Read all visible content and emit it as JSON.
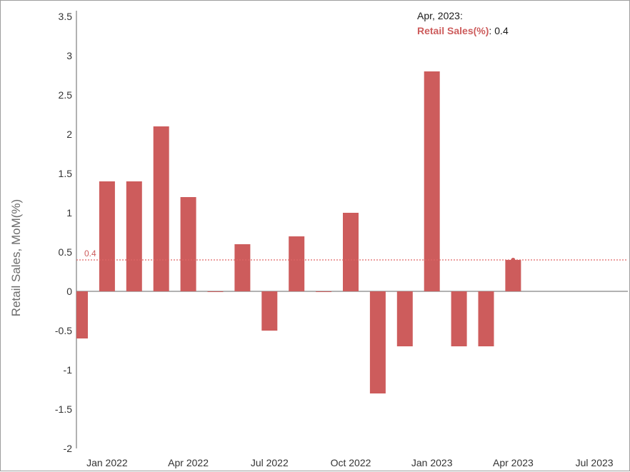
{
  "chart_data": {
    "type": "bar",
    "ylabel": "Retail Sales, MoM(%)",
    "xlabel": "",
    "ylim": [
      -2,
      3.5
    ],
    "yticks": [
      3.5,
      3,
      2.5,
      2,
      1.5,
      1,
      0.5,
      0,
      -0.5,
      -1,
      -1.5,
      -2
    ],
    "ytick_labels": [
      "3.5",
      "3",
      "2.5",
      "2",
      "1.5",
      "1",
      "0.5",
      "0",
      "-0.5",
      "-1",
      "-1.5",
      "-2"
    ],
    "xtick_labels": [
      "Jan 2022",
      "Apr 2022",
      "Jul 2022",
      "Oct 2022",
      "Jan 2023",
      "Apr 2023",
      "Jul 2023"
    ],
    "xtick_dates": [
      "2022-01",
      "2022-04",
      "2022-07",
      "2022-10",
      "2023-01",
      "2023-04",
      "2023-07"
    ],
    "x": [
      "2021-12",
      "2022-01",
      "2022-02",
      "2022-03",
      "2022-04",
      "2022-05",
      "2022-06",
      "2022-07",
      "2022-08",
      "2022-09",
      "2022-10",
      "2022-11",
      "2022-12",
      "2023-01",
      "2023-02",
      "2023-03",
      "2023-04"
    ],
    "values": [
      -0.6,
      1.4,
      1.4,
      2.1,
      1.2,
      0,
      0.6,
      -0.5,
      0.7,
      0,
      1.0,
      -1.3,
      -0.7,
      2.8,
      -0.7,
      -0.7,
      0.4
    ],
    "bar_color": "#cd5c5c",
    "reference_line": {
      "value": 0.4,
      "label": "0.4",
      "color": "#e06666"
    },
    "highlight": {
      "x": "2023-04",
      "value": 0.4
    },
    "grid": false,
    "legend": "none"
  },
  "tooltip": {
    "title": "Apr, 2023:",
    "series_label": "Retail Sales(%)",
    "separator": ":",
    "value": "0.4"
  }
}
